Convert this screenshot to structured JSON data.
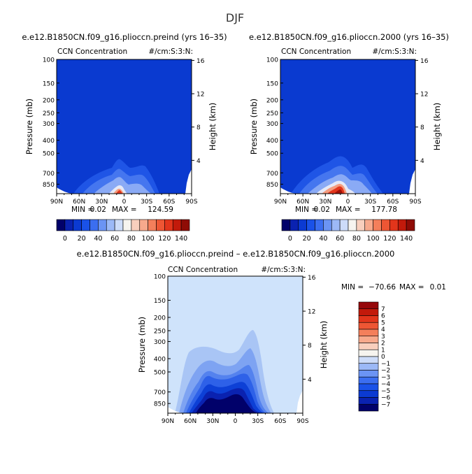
{
  "page": {
    "season_title": "DJF"
  },
  "colors": {
    "base_blue": "#0a3ad0",
    "diff_background": "#cfe3fb",
    "frame": "#000000"
  },
  "chart_data": [
    {
      "type": "heatmap",
      "title": "e.e12.B1850CN.f09_g16.plioccn.preind (yrs 16–35)",
      "left_label": "CCN Concentration",
      "right_label": "#/cm:S:3:N:",
      "xlabel": "",
      "ylabel": "Pressure (mb)",
      "ylabel_right": "Height (km)",
      "x_ticks": [
        "90N",
        "60N",
        "30N",
        "0",
        "30S",
        "60S",
        "90S"
      ],
      "y_ticks": [
        "100",
        "150",
        "200",
        "250",
        "300",
        "400",
        "500",
        "700",
        "850"
      ],
      "y_ticks_right": [
        "4",
        "8",
        "12",
        "16"
      ],
      "min_label": "MIN =",
      "min_value": "0.02",
      "max_label": "MAX =",
      "max_value": "124.59",
      "ylim": [
        100,
        1000
      ],
      "xlim": [
        -90,
        90
      ]
    },
    {
      "type": "heatmap",
      "title": "e.e12.B1850CN.f09_g16.plioccn.2000 (yrs 16–35)",
      "left_label": "CCN Concentration",
      "right_label": "#/cm:S:3:N:",
      "xlabel": "",
      "ylabel": "Pressure (mb)",
      "ylabel_right": "Height (km)",
      "x_ticks": [
        "90N",
        "60N",
        "30N",
        "0",
        "30S",
        "60S",
        "90S"
      ],
      "y_ticks": [
        "100",
        "150",
        "200",
        "250",
        "300",
        "400",
        "500",
        "700",
        "850"
      ],
      "y_ticks_right": [
        "4",
        "8",
        "12",
        "16"
      ],
      "min_label": "MIN =",
      "min_value": "0.02",
      "max_label": "MAX =",
      "max_value": "177.78",
      "ylim": [
        100,
        1000
      ],
      "xlim": [
        -90,
        90
      ]
    },
    {
      "type": "heatmap",
      "title": "e.e12.B1850CN.f09_g16.plioccn.preind – e.e12.B1850CN.f09_g16.plioccn.2000",
      "left_label": "CCN Concentration",
      "right_label": "#/cm:S:3:N:",
      "xlabel": "",
      "ylabel": "Pressure (mb)",
      "ylabel_right": "Height (km)",
      "x_ticks": [
        "90N",
        "60N",
        "30N",
        "0",
        "30S",
        "60S",
        "90S"
      ],
      "y_ticks": [
        "100",
        "150",
        "200",
        "250",
        "300",
        "400",
        "500",
        "700",
        "850"
      ],
      "y_ticks_right": [
        "4",
        "8",
        "12",
        "16"
      ],
      "min_label": "MIN =",
      "min_value": "−70.66",
      "max_label": "MAX =",
      "max_value": "0.01",
      "ylim": [
        100,
        1000
      ],
      "xlim": [
        -90,
        90
      ]
    }
  ],
  "colorbar_abs": {
    "labels": [
      "0",
      "20",
      "40",
      "60",
      "80",
      "100",
      "120",
      "140"
    ],
    "colors": [
      "#01016a",
      "#0a22b0",
      "#0b3ad2",
      "#1a52e8",
      "#3b6ef0",
      "#6b94f4",
      "#9cb9f7",
      "#cddcf9",
      "#f6f4ef",
      "#f8cfbd",
      "#f7a98c",
      "#f47f5b",
      "#ee5634",
      "#e2351b",
      "#c21a0b",
      "#8f0c06"
    ]
  },
  "colorbar_diff": {
    "labels": [
      "7",
      "6",
      "5",
      "4",
      "3",
      "2",
      "1",
      "0",
      "−1",
      "−2",
      "−3",
      "−4",
      "−5",
      "−6",
      "−7"
    ],
    "colors": [
      "#96070a",
      "#c21a0b",
      "#e2351b",
      "#ee5634",
      "#f47f5b",
      "#f7a98c",
      "#f8cfbd",
      "#f6f4ef",
      "#cddcf9",
      "#9cb9f7",
      "#6b94f4",
      "#3b6ef0",
      "#1a52e8",
      "#0b3ad2",
      "#0a22b0",
      "#01016a"
    ]
  }
}
